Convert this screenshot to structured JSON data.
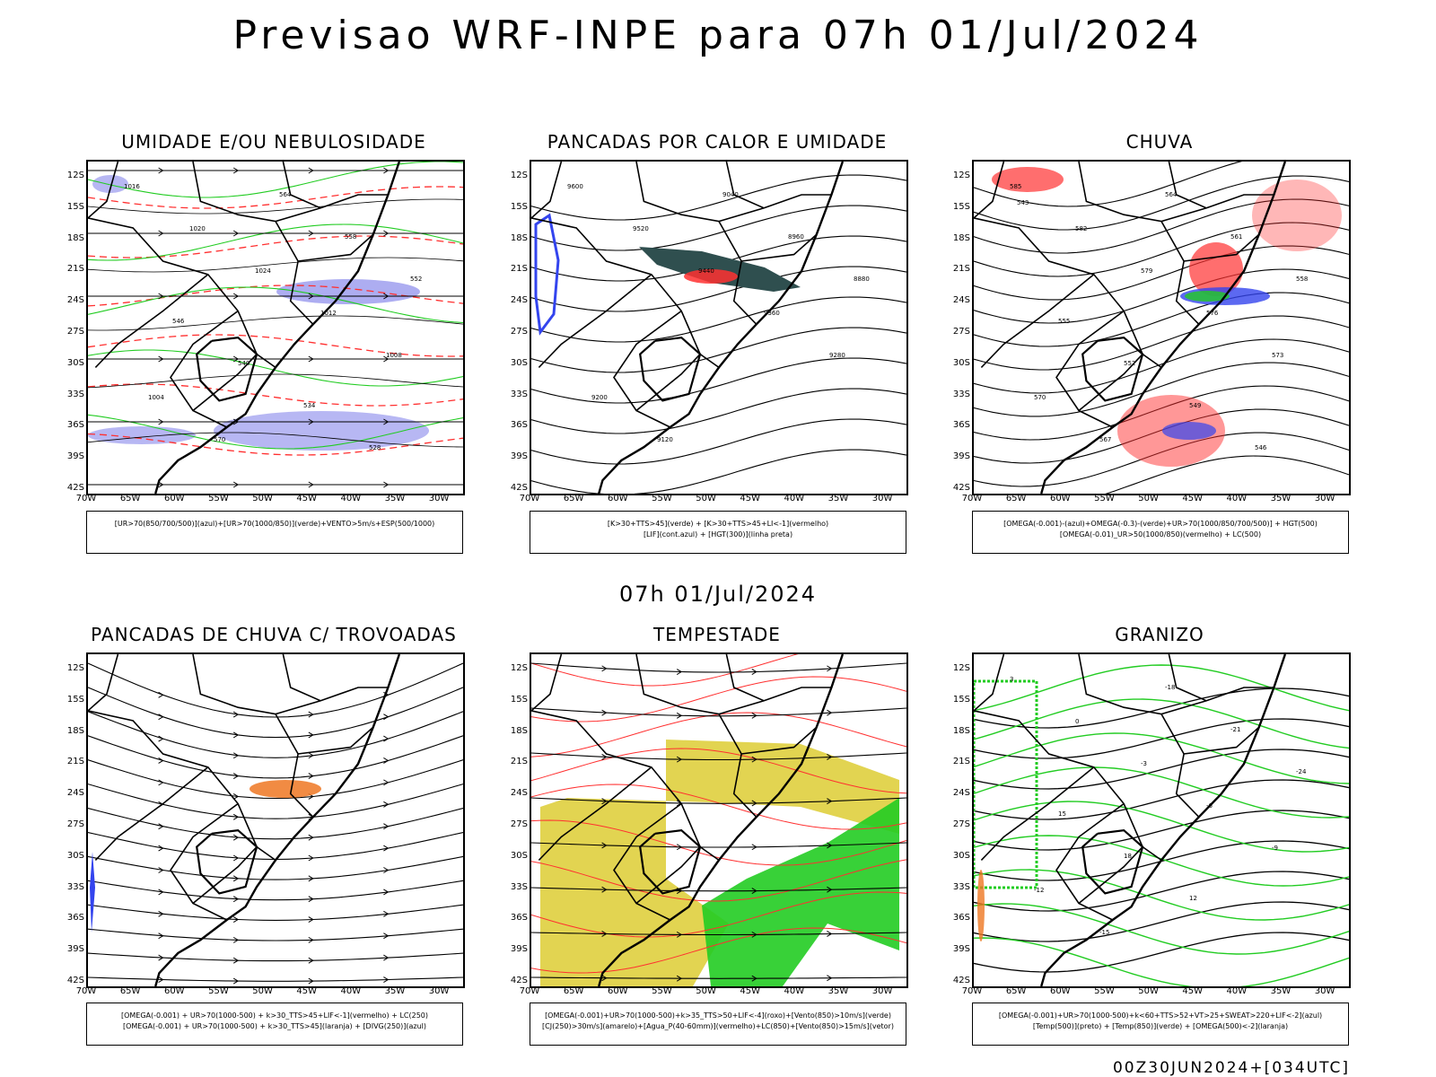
{
  "title": "Previsao WRF-INPE  para 07h 01/Jul/2024",
  "mid_title": "07h 01/Jul/2024",
  "footer": "00Z30JUN2024+[034UTC]",
  "lat_labels": [
    "12S",
    "15S",
    "18S",
    "21S",
    "24S",
    "27S",
    "30S",
    "33S",
    "36S",
    "39S",
    "42S"
  ],
  "lon_labels": [
    "70W",
    "65W",
    "60W",
    "55W",
    "50W",
    "45W",
    "40W",
    "35W",
    "30W"
  ],
  "colors": {
    "red": "#ff3030",
    "green": "#22cc22",
    "blue": "#3344ee",
    "lightblue": "#9999ee",
    "darkteal": "#2f4f4f",
    "yellow": "#ddcc33",
    "orange": "#ee7722"
  },
  "panels": [
    {
      "title": "UMIDADE E/OU NEBULOSIDADE",
      "legend": [
        "[UR>70(850/700/500)](azul)+[UR>70(1000/850)](verde)+VENTO>5m/s+ESP(500/1000)"
      ],
      "contour_labels": [
        "1016",
        "1020",
        "1024",
        "1012",
        "1008",
        "1004",
        "570",
        "564",
        "558",
        "552",
        "546",
        "540",
        "534",
        "528"
      ]
    },
    {
      "title": "PANCADAS POR CALOR E UMIDADE",
      "legend": [
        "[K>30+TTS>45](verde) + [K>30+TTS>45+LI<-1](vermelho)",
        "[LIF](cont.azul) + [HGT(300)](linha preta)"
      ],
      "contour_labels": [
        "9600",
        "9520",
        "9440",
        "9360",
        "9280",
        "9200",
        "9120",
        "9040",
        "8960",
        "8880"
      ]
    },
    {
      "title": "CHUVA",
      "legend": [
        "[OMEGA(-0.001)-(azul)+OMEGA(-0.3)-(verde)+UR>70(1000/850/700/500)] + HGT(500)",
        "[OMEGA(-0.01)_UR>50(1000/850)(vermelho) + LC(500)"
      ],
      "contour_labels": [
        "585",
        "582",
        "579",
        "576",
        "573",
        "570",
        "567",
        "564",
        "561",
        "558",
        "555",
        "552",
        "549",
        "546",
        "543"
      ]
    },
    {
      "title": "PANCADAS DE CHUVA C/ TROVOADAS",
      "legend": [
        "[OMEGA(-0.001) + UR>70(1000-500) + k>30_TTS>45+LIF<-1](vermelho) + LC(250)",
        "[OMEGA(-0.001) + UR>70(1000-500) + k>30_TTS>45](laranja) + [DIVG(250)](azul)"
      ],
      "contour_labels": []
    },
    {
      "title": "TEMPESTADE",
      "legend": [
        "[OMEGA(-0.001)+UR>70(1000-500)+k>35_TTS>50+LIF<-4](roxo)+[Vento(850)>10m/s](verde)",
        "[CJ(250)>30m/s](amarelo)+[Agua_P(40-60mm)](vermelho)+LC(850)+[Vento(850)>15m/s](vetor)"
      ],
      "contour_labels": []
    },
    {
      "title": "GRANIZO",
      "legend": [
        "[OMEGA(-0.001)+UR>70(1000-500)+k<60+TTS>52+VT>25+SWEAT>220+LIF<-2](azul)",
        "[Temp(500)](preto) + [Temp(850)](verde) + [OMEGA(500)<-2](laranja)"
      ],
      "contour_labels": [
        "3",
        "0",
        "-3",
        "-6",
        "-9",
        "-12",
        "-15",
        "-18",
        "-21",
        "-24",
        "15",
        "18",
        "12"
      ]
    }
  ]
}
